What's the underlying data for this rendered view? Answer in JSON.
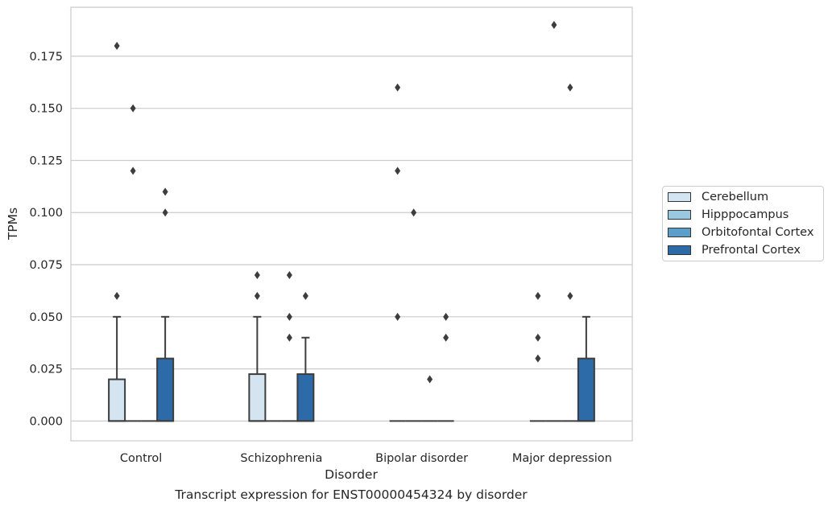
{
  "chart_data": {
    "type": "box",
    "xlabel": "Disorder",
    "ylabel": "TPMs",
    "ylim": [
      -0.0095,
      0.1985
    ],
    "yticks": [
      "0.000",
      "0.025",
      "0.050",
      "0.075",
      "0.100",
      "0.125",
      "0.150",
      "0.175"
    ],
    "grid": true,
    "legend_position": "right",
    "categories": [
      "Control",
      "Schizophrenia",
      "Bipolar disorder",
      "Major depression"
    ],
    "series": [
      {
        "name": "Cerebellum",
        "color": "#d5e4f1",
        "boxes": [
          {
            "q1": 0,
            "median": 0,
            "q3": 0.02,
            "whisker_low": 0,
            "whisker_high": 0.05,
            "outliers": [
              0.06,
              0.18
            ]
          },
          {
            "q1": 0,
            "median": 0,
            "q3": 0.0225,
            "whisker_low": 0,
            "whisker_high": 0.05,
            "outliers": [
              0.06,
              0.07
            ]
          },
          {
            "q1": 0,
            "median": 0,
            "q3": 0,
            "whisker_low": 0,
            "whisker_high": 0,
            "outliers": [
              0.05,
              0.12,
              0.16
            ]
          },
          {
            "q1": 0,
            "median": 0,
            "q3": 0,
            "whisker_low": 0,
            "whisker_high": 0,
            "outliers": [
              0.03,
              0.04,
              0.06
            ]
          }
        ]
      },
      {
        "name": "Hipppocampus",
        "color": "#9ac8e0",
        "boxes": [
          {
            "q1": 0,
            "median": 0,
            "q3": 0,
            "whisker_low": 0,
            "whisker_high": 0,
            "outliers": [
              0.12,
              0.15
            ]
          },
          {
            "q1": 0,
            "median": 0,
            "q3": 0,
            "whisker_low": 0,
            "whisker_high": 0,
            "outliers": []
          },
          {
            "q1": 0,
            "median": 0,
            "q3": 0,
            "whisker_low": 0,
            "whisker_high": 0,
            "outliers": [
              0.1
            ]
          },
          {
            "q1": 0,
            "median": 0,
            "q3": 0,
            "whisker_low": 0,
            "whisker_high": 0,
            "outliers": [
              0.19
            ]
          }
        ]
      },
      {
        "name": "Orbitofontal Cortex",
        "color": "#5a9ec9",
        "boxes": [
          {
            "q1": 0,
            "median": 0,
            "q3": 0,
            "whisker_low": 0,
            "whisker_high": 0,
            "outliers": []
          },
          {
            "q1": 0,
            "median": 0,
            "q3": 0,
            "whisker_low": 0,
            "whisker_high": 0,
            "outliers": [
              0.04,
              0.05,
              0.07
            ]
          },
          {
            "q1": 0,
            "median": 0,
            "q3": 0,
            "whisker_low": 0,
            "whisker_high": 0,
            "outliers": [
              0.02
            ]
          },
          {
            "q1": 0,
            "median": 0,
            "q3": 0,
            "whisker_low": 0,
            "whisker_high": 0,
            "outliers": [
              0.06,
              0.16
            ]
          }
        ]
      },
      {
        "name": "Prefrontal Cortex",
        "color": "#2c6aa8",
        "boxes": [
          {
            "q1": 0,
            "median": 0,
            "q3": 0.03,
            "whisker_low": 0,
            "whisker_high": 0.05,
            "outliers": [
              0.1,
              0.11
            ]
          },
          {
            "q1": 0,
            "median": 0,
            "q3": 0.0225,
            "whisker_low": 0,
            "whisker_high": 0.04,
            "outliers": [
              0.06
            ]
          },
          {
            "q1": 0,
            "median": 0,
            "q3": 0,
            "whisker_low": 0,
            "whisker_high": 0,
            "outliers": [
              0.04,
              0.05
            ]
          },
          {
            "q1": 0,
            "median": 0,
            "q3": 0.03,
            "whisker_low": 0,
            "whisker_high": 0.05,
            "outliers": []
          }
        ]
      }
    ],
    "caption": "Transcript expression for ENST00000454324 by disorder"
  }
}
